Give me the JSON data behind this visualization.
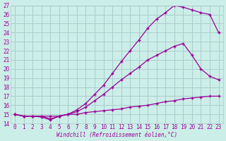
{
  "xlabel": "Windchill (Refroidissement éolien,°C)",
  "bg_color": "#cceee8",
  "grid_color": "#aacccc",
  "line_color": "#990099",
  "line1_x": [
    0,
    1,
    2,
    3,
    4,
    5,
    6,
    7,
    8,
    9,
    10,
    11,
    12,
    13,
    14,
    15,
    16,
    17,
    18,
    19,
    20,
    21,
    22,
    23
  ],
  "line1_y": [
    15.0,
    14.8,
    14.8,
    14.8,
    14.5,
    14.8,
    15.0,
    15.3,
    15.8,
    16.5,
    17.2,
    18.0,
    18.8,
    19.5,
    20.2,
    21.0,
    21.5,
    22.0,
    22.5,
    22.8,
    21.5,
    20.0,
    19.2,
    18.8
  ],
  "line2_x": [
    0,
    1,
    2,
    3,
    4,
    5,
    6,
    7,
    8,
    9,
    10,
    11,
    12,
    13,
    14,
    15,
    16,
    17,
    18,
    19,
    20,
    21,
    22,
    23
  ],
  "line2_y": [
    15.0,
    14.8,
    14.8,
    14.7,
    14.4,
    14.8,
    15.0,
    15.5,
    16.2,
    17.2,
    18.2,
    19.5,
    20.8,
    22.0,
    23.2,
    24.5,
    25.5,
    26.2,
    27.0,
    26.8,
    26.5,
    26.2,
    26.0,
    24.0
  ],
  "line3_x": [
    0,
    1,
    2,
    3,
    4,
    5,
    6,
    7,
    8,
    9,
    10,
    11,
    12,
    13,
    14,
    15,
    16,
    17,
    18,
    19,
    20,
    21,
    22,
    23
  ],
  "line3_y": [
    15.0,
    14.8,
    14.8,
    14.8,
    14.8,
    14.8,
    15.0,
    15.0,
    15.2,
    15.3,
    15.4,
    15.5,
    15.6,
    15.8,
    15.9,
    16.0,
    16.2,
    16.4,
    16.5,
    16.7,
    16.8,
    16.9,
    17.0,
    17.0
  ],
  "xlim": [
    -0.5,
    23.5
  ],
  "ylim": [
    14,
    27
  ],
  "yticks": [
    14,
    15,
    16,
    17,
    18,
    19,
    20,
    21,
    22,
    23,
    24,
    25,
    26,
    27
  ],
  "xticks": [
    0,
    1,
    2,
    3,
    4,
    5,
    6,
    7,
    8,
    9,
    10,
    11,
    12,
    13,
    14,
    15,
    16,
    17,
    18,
    19,
    20,
    21,
    22,
    23
  ]
}
